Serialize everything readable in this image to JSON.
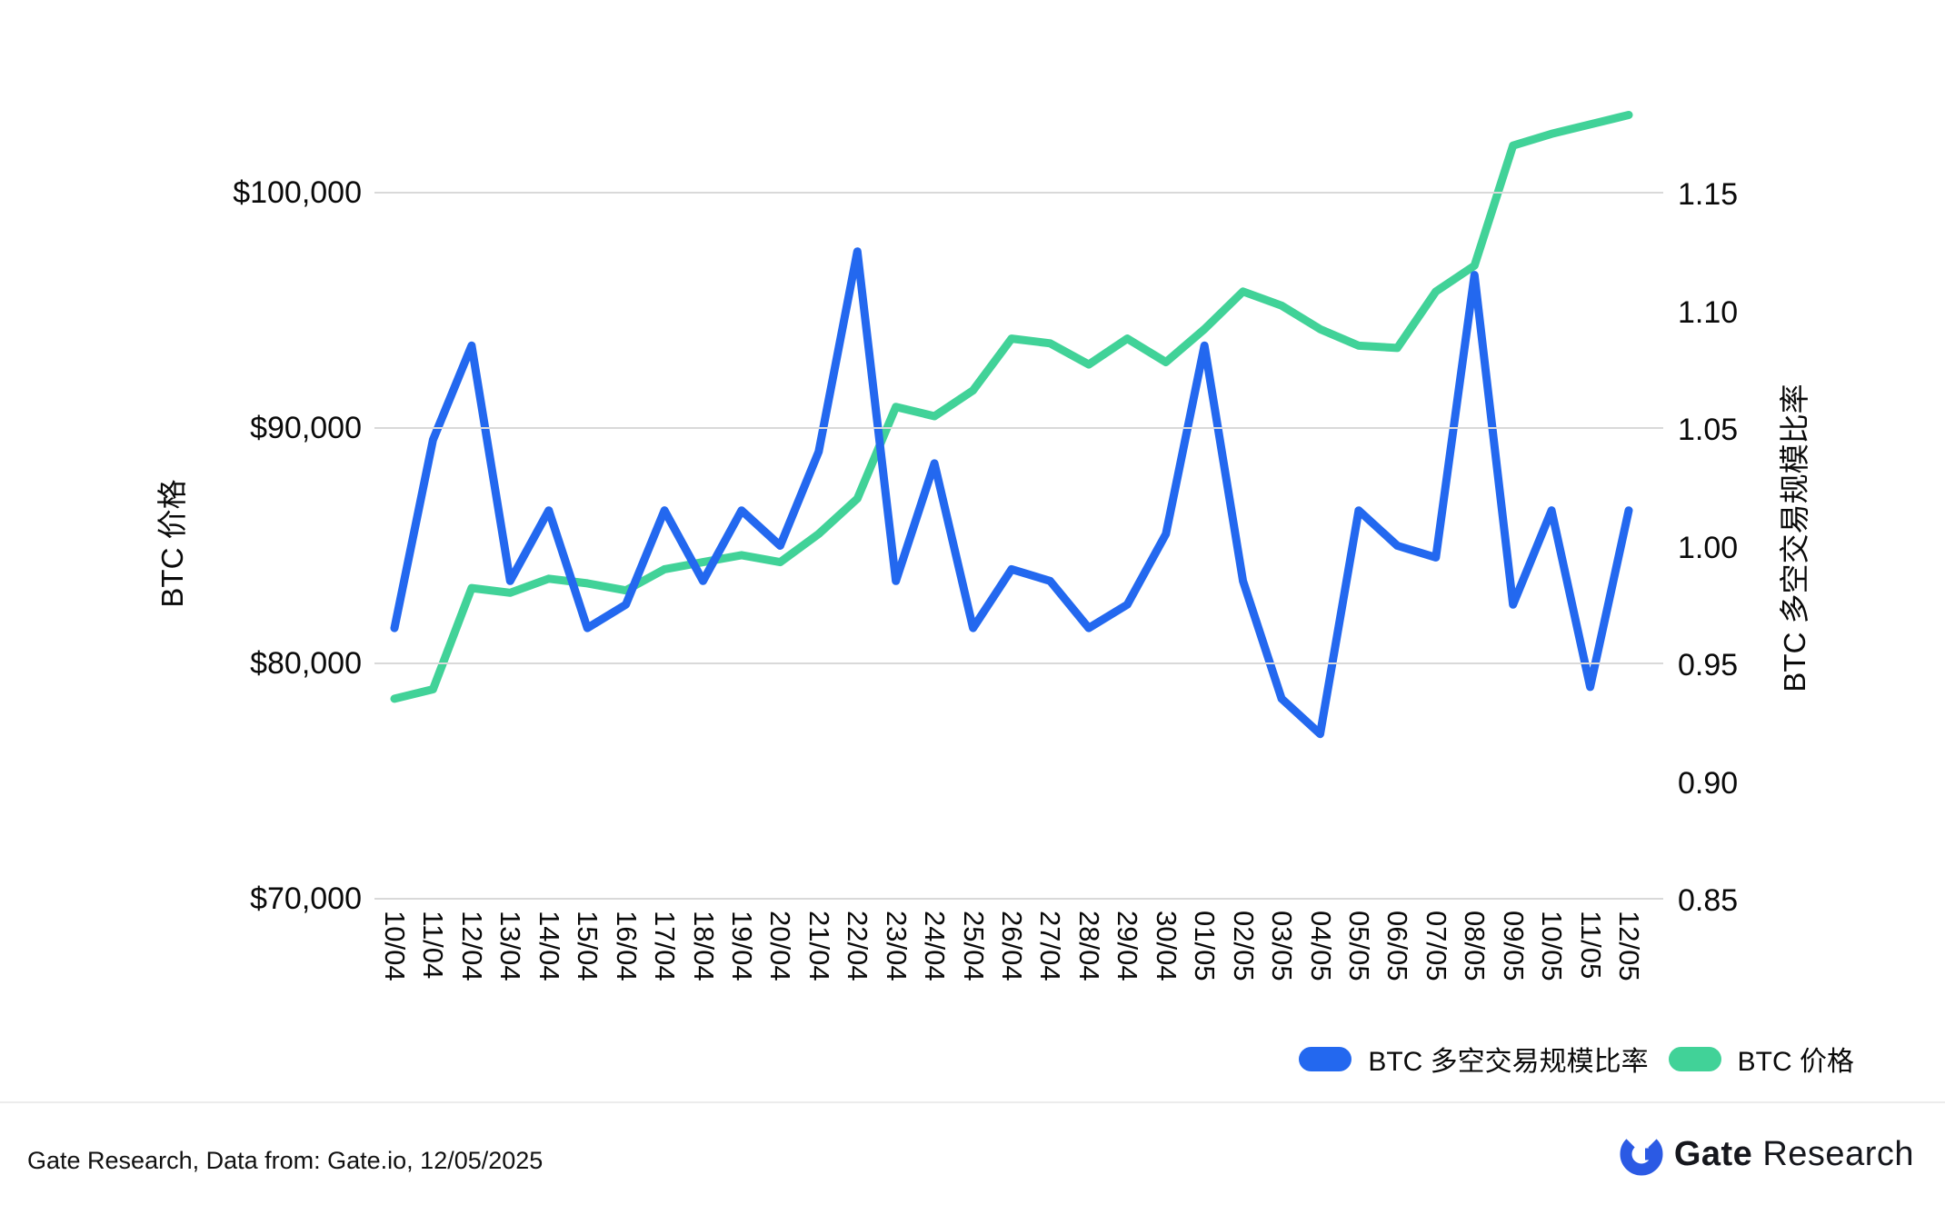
{
  "chart_data": {
    "type": "line",
    "categories": [
      "10/04",
      "11/04",
      "12/04",
      "13/04",
      "14/04",
      "15/04",
      "16/04",
      "17/04",
      "18/04",
      "19/04",
      "20/04",
      "21/04",
      "22/04",
      "23/04",
      "24/04",
      "25/04",
      "26/04",
      "27/04",
      "28/04",
      "29/04",
      "30/04",
      "01/05",
      "02/05",
      "03/05",
      "04/05",
      "05/05",
      "06/05",
      "07/05",
      "08/05",
      "09/05",
      "10/05",
      "11/05",
      "12/05"
    ],
    "series": [
      {
        "name": "BTC 多空交易规模比率",
        "axis": "right",
        "color": "#2368ef",
        "values": [
          0.965,
          1.045,
          1.085,
          0.985,
          1.015,
          0.965,
          0.975,
          1.015,
          0.985,
          1.015,
          1.0,
          1.04,
          1.125,
          0.985,
          1.035,
          0.965,
          0.99,
          0.985,
          0.965,
          0.975,
          1.005,
          1.085,
          0.985,
          0.935,
          0.92,
          1.015,
          1.0,
          0.995,
          1.115,
          0.975,
          1.015,
          0.94,
          1.015
        ]
      },
      {
        "name": "BTC 价格",
        "axis": "left",
        "color": "#41d298",
        "values": [
          78500,
          78900,
          83200,
          83000,
          83600,
          83400,
          83100,
          84000,
          84300,
          84600,
          84300,
          85500,
          87000,
          90900,
          90500,
          91600,
          93800,
          93600,
          92700,
          93800,
          92800,
          94200,
          95800,
          95200,
          94200,
          93500,
          93400,
          95800,
          96900,
          102000,
          102500,
          102900,
          103300
        ]
      }
    ],
    "left_axis": {
      "title": "BTC 价格",
      "tick_labels": [
        "$100,000",
        "$90,000",
        "$80,000",
        "$70,000"
      ],
      "tick_values": [
        100000,
        90000,
        80000,
        70000
      ],
      "min": 70000,
      "max": 100000
    },
    "right_axis": {
      "title": "BTC 多空交易规模比率",
      "tick_labels": [
        "1.15",
        "1.10",
        "1.05",
        "1.00",
        "0.95",
        "0.90",
        "0.85"
      ],
      "tick_values": [
        1.15,
        1.1,
        1.05,
        1.0,
        0.95,
        0.9,
        0.85
      ],
      "min": 0.85,
      "max": 1.15
    },
    "grid": "horizontal gridlines at left-axis ticks only",
    "legend_position": "bottom-right",
    "title": ""
  },
  "legend": {
    "items": [
      {
        "label": "BTC 多空交易规模比率",
        "color": "#2368ef"
      },
      {
        "label": "BTC 价格",
        "color": "#41d298"
      }
    ]
  },
  "footer": {
    "source_text": "Gate Research, Data from: Gate.io, 12/05/2025"
  },
  "brand": {
    "name_bold": "Gate",
    "name_regular": "Research",
    "logo_color": "#2b5ae4"
  },
  "colors": {
    "background": "#ffffff",
    "gridline": "#d9d9d9",
    "text": "#0a0a0a",
    "ratio_line": "#2368ef",
    "price_line": "#41d298"
  }
}
